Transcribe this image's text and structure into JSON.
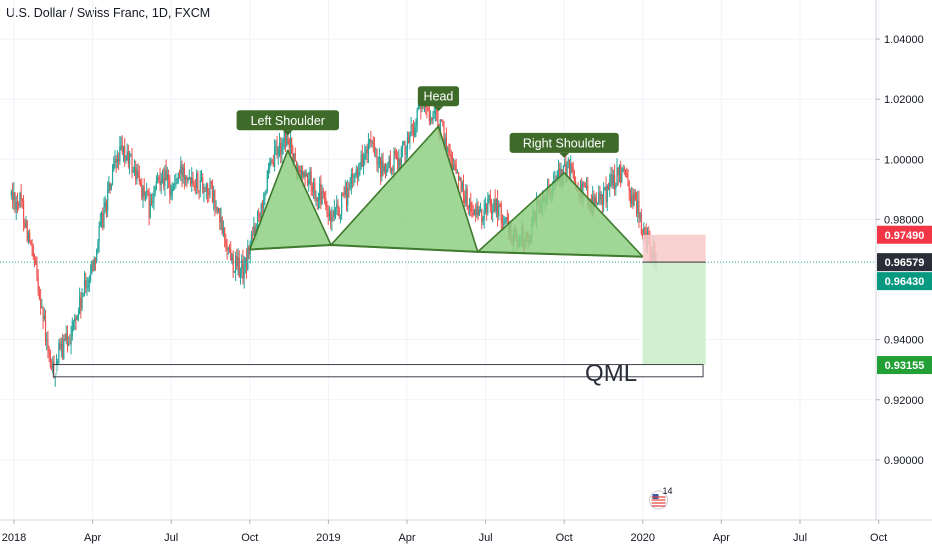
{
  "header": {
    "title": "U.S. Dollar / Swiss Franc, 1D, FXCM"
  },
  "colors": {
    "up": "#26a69a",
    "down": "#ef5350",
    "pattern_fill": "#8fcf84",
    "pattern_stroke": "#3f7a2e",
    "label_bg": "#3e6b2a",
    "stop_zone": "#f8c9c9",
    "target_zone": "#cdeecb",
    "current_price": "#2a2e39",
    "target_price": "#089981",
    "stop_price": "#f23645"
  },
  "chart_data": {
    "type": "candlestick",
    "ylim": [
      0.88,
      1.053
    ],
    "y_ticks": [
      {
        "value": 1.04,
        "label": "1.04000"
      },
      {
        "value": 1.02,
        "label": "1.02000"
      },
      {
        "value": 1.0,
        "label": "1.00000"
      },
      {
        "value": 0.98,
        "label": "0.98000"
      },
      {
        "value": 0.94,
        "label": "0.94000"
      },
      {
        "value": 0.92,
        "label": "0.92000"
      },
      {
        "value": 0.9,
        "label": "0.90000"
      }
    ],
    "x_ticks": [
      {
        "month": 0,
        "label": "2018"
      },
      {
        "month": 3,
        "label": "Apr"
      },
      {
        "month": 6,
        "label": "Jul"
      },
      {
        "month": 9,
        "label": "Oct"
      },
      {
        "month": 12,
        "label": "2019"
      },
      {
        "month": 15,
        "label": "Apr"
      },
      {
        "month": 18,
        "label": "Jul"
      },
      {
        "month": 21,
        "label": "Oct"
      },
      {
        "month": 24,
        "label": "2020"
      },
      {
        "month": 27,
        "label": "Apr"
      },
      {
        "month": 30,
        "label": "Jul"
      },
      {
        "month": 33,
        "label": "Oct"
      }
    ],
    "x_start_month": -0.1,
    "x_end_month": 33.3,
    "price_path": [
      [
        -0.1,
        0.988
      ],
      [
        0.3,
        0.985
      ],
      [
        0.6,
        0.972
      ],
      [
        1.0,
        0.955
      ],
      [
        1.3,
        0.935
      ],
      [
        1.5,
        0.929
      ],
      [
        1.7,
        0.935
      ],
      [
        2.0,
        0.939
      ],
      [
        2.4,
        0.948
      ],
      [
        3.0,
        0.965
      ],
      [
        3.5,
        0.985
      ],
      [
        4.0,
        1.002
      ],
      [
        4.4,
        1.0
      ],
      [
        4.8,
        0.992
      ],
      [
        5.2,
        0.983
      ],
      [
        5.6,
        0.996
      ],
      [
        6.0,
        0.99
      ],
      [
        6.5,
        0.997
      ],
      [
        7.0,
        0.993
      ],
      [
        7.5,
        0.99
      ],
      [
        8.0,
        0.975
      ],
      [
        8.4,
        0.965
      ],
      [
        8.8,
        0.963
      ],
      [
        9.0,
        0.971
      ],
      [
        9.5,
        0.988
      ],
      [
        10.0,
        1.002
      ],
      [
        10.4,
        1.008
      ],
      [
        10.8,
        0.996
      ],
      [
        11.2,
        0.994
      ],
      [
        11.5,
        0.99
      ],
      [
        11.8,
        0.987
      ],
      [
        12.1,
        0.978
      ],
      [
        12.4,
        0.983
      ],
      [
        12.8,
        0.99
      ],
      [
        13.2,
        0.999
      ],
      [
        13.6,
        1.004
      ],
      [
        14.0,
        0.996
      ],
      [
        14.4,
        0.998
      ],
      [
        14.8,
        1.002
      ],
      [
        15.2,
        1.01
      ],
      [
        15.6,
        1.018
      ],
      [
        16.0,
        1.014
      ],
      [
        16.3,
        1.01
      ],
      [
        16.6,
        1.003
      ],
      [
        17.0,
        0.993
      ],
      [
        17.4,
        0.984
      ],
      [
        17.8,
        0.98
      ],
      [
        18.1,
        0.986
      ],
      [
        18.5,
        0.984
      ],
      [
        18.8,
        0.977
      ],
      [
        19.2,
        0.974
      ],
      [
        19.6,
        0.973
      ],
      [
        20.0,
        0.985
      ],
      [
        20.4,
        0.991
      ],
      [
        20.8,
        0.994
      ],
      [
        21.2,
        0.997
      ],
      [
        21.6,
        0.991
      ],
      [
        22.0,
        0.987
      ],
      [
        22.4,
        0.986
      ],
      [
        22.8,
        0.993
      ],
      [
        23.2,
        0.995
      ],
      [
        23.5,
        0.989
      ],
      [
        23.8,
        0.984
      ],
      [
        24.0,
        0.976
      ],
      [
        24.2,
        0.972
      ],
      [
        24.4,
        0.968
      ],
      [
        24.55,
        0.9658
      ]
    ],
    "pattern": {
      "neckline": [
        [
          9.0,
          0.97
        ],
        [
          12.1,
          0.9715
        ],
        [
          17.7,
          0.9692
        ],
        [
          24.0,
          0.9676
        ]
      ],
      "left_shoulder": [
        [
          9.0,
          0.97
        ],
        [
          10.45,
          1.003
        ],
        [
          12.1,
          0.9715
        ]
      ],
      "head": [
        [
          12.1,
          0.9715
        ],
        [
          16.2,
          1.011
        ],
        [
          17.7,
          0.9692
        ]
      ],
      "right_shoulder": [
        [
          17.7,
          0.9692
        ],
        [
          21.0,
          0.9955
        ],
        [
          24.0,
          0.9676
        ]
      ],
      "labels": [
        {
          "text": "Left Shoulder",
          "month": 10.45,
          "anchor": 1.003
        },
        {
          "text": "Head",
          "month": 16.2,
          "anchor": 1.011
        },
        {
          "text": "Right Shoulder",
          "month": 21.0,
          "anchor": 0.9955
        }
      ]
    },
    "position": {
      "start_month": 24.0,
      "end_month": 26.4,
      "entry": 0.96579,
      "stop": 0.9749,
      "target": 0.93155
    },
    "qml": {
      "start_month": 1.5,
      "end_month": 26.3,
      "top": 0.9317,
      "bottom": 0.9303,
      "label": "QML"
    },
    "price_labels": [
      {
        "value": 0.9749,
        "label": "0.97490",
        "kind": "stop"
      },
      {
        "value": 0.96579,
        "label": "0.96579",
        "kind": "current"
      },
      {
        "value": 0.9643,
        "label": "0.96430",
        "kind": "entry"
      },
      {
        "value": 0.93155,
        "label": "0.93155",
        "kind": "target"
      }
    ],
    "events_badge": "14"
  }
}
